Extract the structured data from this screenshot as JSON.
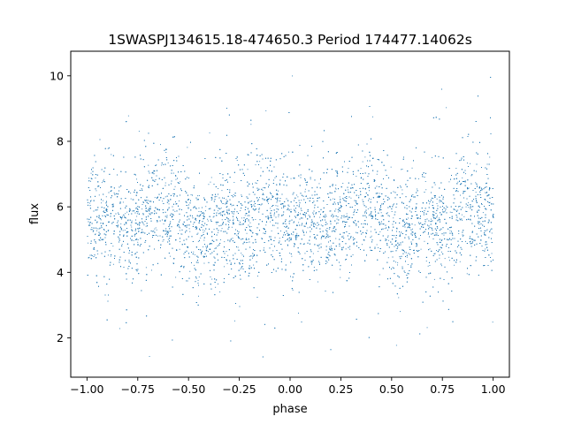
{
  "chart_data": {
    "type": "scatter",
    "title": "1SWASPJ134615.18-474650.3 Period 174477.14062s",
    "xlabel": "phase",
    "ylabel": "flux",
    "xlim": [
      -1.08,
      1.08
    ],
    "ylim": [
      0.8,
      10.75
    ],
    "xticks": [
      -1.0,
      -0.75,
      -0.5,
      -0.25,
      0.0,
      0.25,
      0.5,
      0.75,
      1.0
    ],
    "xtick_labels": [
      "−1.00",
      "−0.75",
      "−0.50",
      "−0.25",
      "0.00",
      "0.25",
      "0.50",
      "0.75",
      "1.00"
    ],
    "yticks": [
      2,
      4,
      6,
      8,
      10
    ],
    "ytick_labels": [
      "2",
      "4",
      "6",
      "8",
      "10"
    ],
    "grid": false,
    "marker_color": "#1f77b4",
    "series": [
      {
        "phase_range": [
          -1.0,
          1.0
        ],
        "flux_profile": [
          {
            "phase": -1.0,
            "flux": 5.6
          },
          {
            "phase": -0.9,
            "flux": 5.5
          },
          {
            "phase": -0.8,
            "flux": 5.4
          },
          {
            "phase": -0.65,
            "flux": 6.1
          },
          {
            "phase": -0.55,
            "flux": 5.9
          },
          {
            "phase": -0.45,
            "flux": 5.0
          },
          {
            "phase": -0.35,
            "flux": 5.6
          },
          {
            "phase": -0.25,
            "flux": 5.3
          },
          {
            "phase": -0.15,
            "flux": 6.0
          },
          {
            "phase": -0.05,
            "flux": 5.7
          },
          {
            "phase": 0.0,
            "flux": 5.6
          },
          {
            "phase": 0.1,
            "flux": 5.5
          },
          {
            "phase": 0.2,
            "flux": 5.4
          },
          {
            "phase": 0.35,
            "flux": 6.1
          },
          {
            "phase": 0.45,
            "flux": 5.9
          },
          {
            "phase": 0.55,
            "flux": 5.0
          },
          {
            "phase": 0.65,
            "flux": 5.6
          },
          {
            "phase": 0.75,
            "flux": 5.3
          },
          {
            "phase": 0.85,
            "flux": 6.0
          },
          {
            "phase": 0.95,
            "flux": 5.7
          },
          {
            "phase": 1.0,
            "flux": 5.6
          }
        ],
        "flux_spread": 0.85,
        "flux_min": 1.3,
        "flux_max": 10.3
      }
    ]
  }
}
